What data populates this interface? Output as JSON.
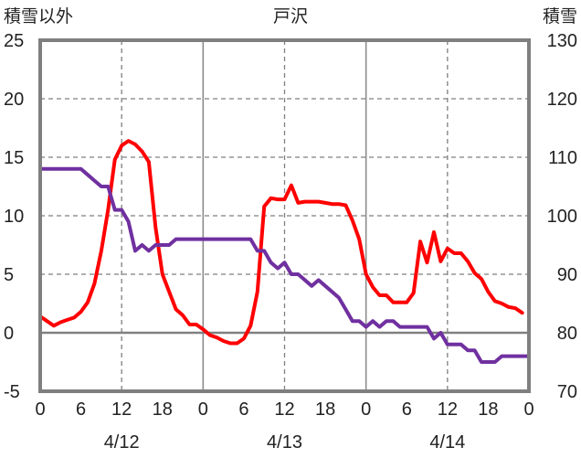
{
  "chart_data": {
    "type": "line",
    "title": "戸沢",
    "y_left_label": "積雪以外",
    "y_right_label": "積雪",
    "ylim_left": [
      -5,
      25
    ],
    "ylim_right": [
      70,
      130
    ],
    "yticks_left": [
      "25",
      "20",
      "15",
      "10",
      "5",
      "0",
      "-5"
    ],
    "yticks_right": [
      "130",
      "120",
      "110",
      "100",
      "90",
      "80",
      "70"
    ],
    "xlim_hours": [
      0,
      72
    ],
    "xticks": [
      "0",
      "6",
      "12",
      "18",
      "0",
      "6",
      "12",
      "18",
      "0",
      "6",
      "12",
      "18",
      "0"
    ],
    "date_labels": [
      "4/12",
      "4/13",
      "4/14"
    ],
    "grid": true,
    "series": [
      {
        "axis": "left",
        "color": "#ff0000",
        "points": [
          [
            0,
            1.4
          ],
          [
            1,
            1.0
          ],
          [
            2,
            0.6
          ],
          [
            3,
            0.9
          ],
          [
            4,
            1.1
          ],
          [
            5,
            1.3
          ],
          [
            6,
            1.8
          ],
          [
            7,
            2.6
          ],
          [
            8,
            4.2
          ],
          [
            9,
            7.0
          ],
          [
            10,
            10.5
          ],
          [
            11,
            14.8
          ],
          [
            12,
            16.0
          ],
          [
            13,
            16.4
          ],
          [
            14,
            16.1
          ],
          [
            15,
            15.5
          ],
          [
            16,
            14.6
          ],
          [
            17,
            9.0
          ],
          [
            18,
            5.0
          ],
          [
            19,
            3.5
          ],
          [
            20,
            2.0
          ],
          [
            21,
            1.5
          ],
          [
            22,
            0.7
          ],
          [
            23,
            0.7
          ],
          [
            24,
            0.3
          ],
          [
            25,
            -0.2
          ],
          [
            26,
            -0.4
          ],
          [
            27,
            -0.7
          ],
          [
            28,
            -0.9
          ],
          [
            29,
            -0.9
          ],
          [
            30,
            -0.5
          ],
          [
            31,
            0.6
          ],
          [
            32,
            3.5
          ],
          [
            33,
            10.8
          ],
          [
            34,
            11.5
          ],
          [
            35,
            11.4
          ],
          [
            36,
            11.4
          ],
          [
            37,
            12.6
          ],
          [
            38,
            11.1
          ],
          [
            39,
            11.2
          ],
          [
            40,
            11.2
          ],
          [
            41,
            11.2
          ],
          [
            42,
            11.1
          ],
          [
            43,
            11.0
          ],
          [
            44,
            11.0
          ],
          [
            45,
            10.9
          ],
          [
            46,
            9.6
          ],
          [
            47,
            8.0
          ],
          [
            48,
            5.0
          ],
          [
            49,
            3.9
          ],
          [
            50,
            3.2
          ],
          [
            51,
            3.2
          ],
          [
            52,
            2.6
          ],
          [
            53,
            2.6
          ],
          [
            54,
            2.6
          ],
          [
            55,
            3.4
          ],
          [
            56,
            7.8
          ],
          [
            57,
            6.0
          ],
          [
            58,
            8.6
          ],
          [
            59,
            6.1
          ],
          [
            60,
            7.2
          ],
          [
            61,
            6.8
          ],
          [
            62,
            6.8
          ],
          [
            63,
            6.1
          ],
          [
            64,
            5.1
          ],
          [
            65,
            4.6
          ],
          [
            66,
            3.5
          ],
          [
            67,
            2.7
          ],
          [
            68,
            2.5
          ],
          [
            69,
            2.2
          ],
          [
            70,
            2.1
          ],
          [
            71,
            1.7
          ]
        ]
      },
      {
        "axis": "right",
        "color": "#7030a0",
        "points": [
          [
            0,
            108
          ],
          [
            6,
            108
          ],
          [
            7,
            107
          ],
          [
            8,
            106
          ],
          [
            9,
            105
          ],
          [
            10,
            105
          ],
          [
            11,
            101
          ],
          [
            12,
            101
          ],
          [
            13,
            99
          ],
          [
            14,
            94
          ],
          [
            15,
            95
          ],
          [
            16,
            94
          ],
          [
            17,
            95
          ],
          [
            18,
            95
          ],
          [
            19,
            95
          ],
          [
            20,
            96
          ],
          [
            30,
            96
          ],
          [
            31,
            96
          ],
          [
            32,
            94
          ],
          [
            33,
            94
          ],
          [
            34,
            92
          ],
          [
            35,
            91
          ],
          [
            36,
            92
          ],
          [
            37,
            90
          ],
          [
            38,
            90
          ],
          [
            39,
            89
          ],
          [
            40,
            88
          ],
          [
            41,
            89
          ],
          [
            42,
            88
          ],
          [
            43,
            87
          ],
          [
            44,
            86
          ],
          [
            45,
            84
          ],
          [
            46,
            82
          ],
          [
            47,
            82
          ],
          [
            48,
            81
          ],
          [
            49,
            82
          ],
          [
            50,
            81
          ],
          [
            51,
            82
          ],
          [
            52,
            82
          ],
          [
            53,
            81
          ],
          [
            54,
            81
          ],
          [
            57,
            81
          ],
          [
            58,
            79
          ],
          [
            59,
            80
          ],
          [
            60,
            78
          ],
          [
            62,
            78
          ],
          [
            63,
            77
          ],
          [
            64,
            77
          ],
          [
            65,
            75
          ],
          [
            67,
            75
          ],
          [
            68,
            76
          ],
          [
            72,
            76
          ]
        ]
      }
    ]
  }
}
